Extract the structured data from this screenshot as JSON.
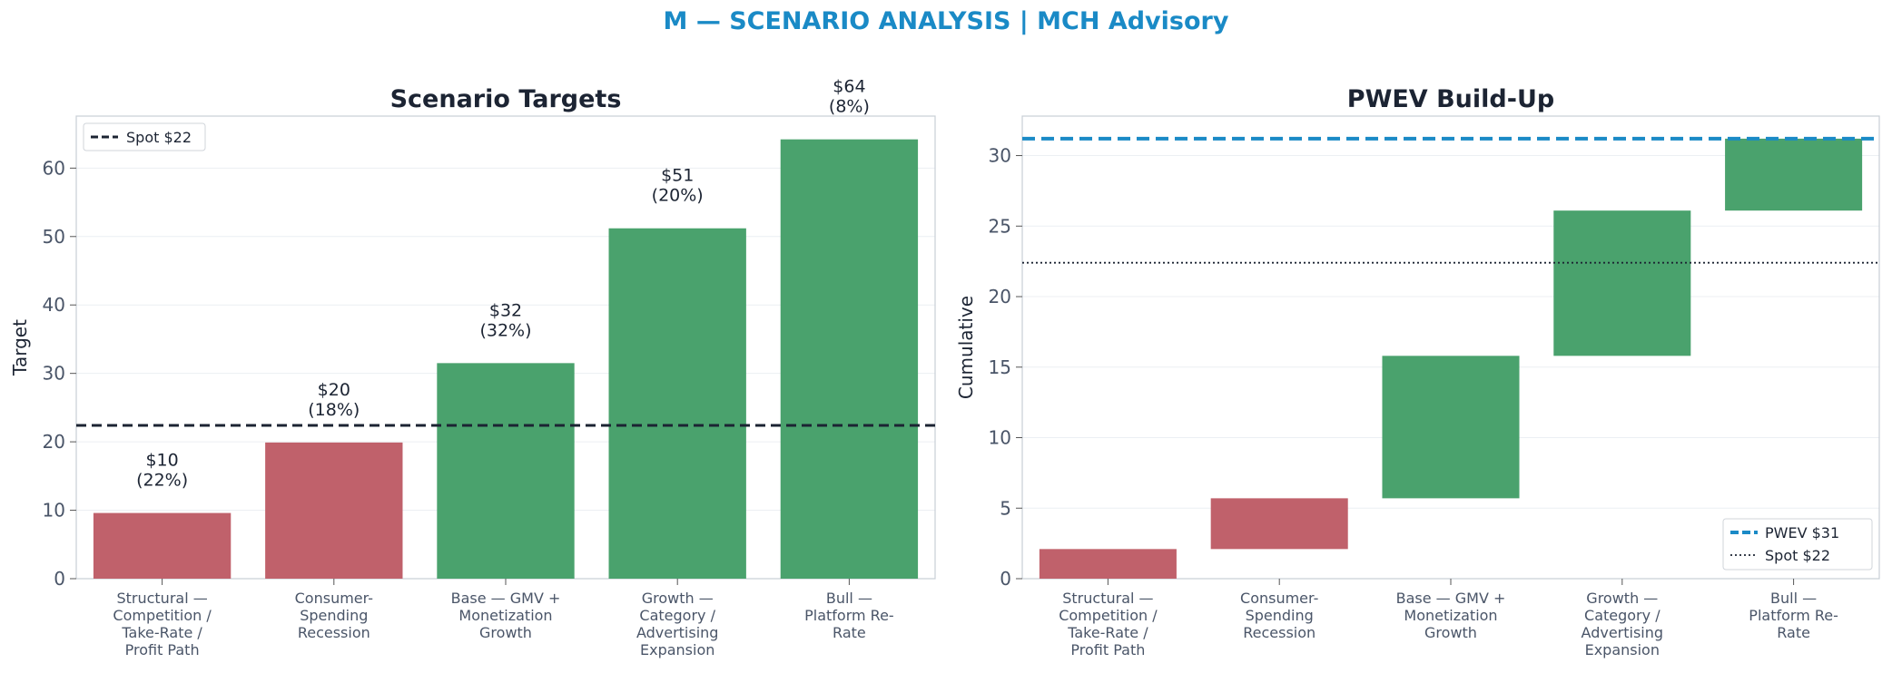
{
  "suptitle": "M — SCENARIO ANALYSIS | MCH Advisory",
  "colors": {
    "downside": "#c0616b",
    "upside": "#4aa26d",
    "spot_line": "#1c2433",
    "pwev_line": "#1a8ac6",
    "title": "#1c2433",
    "tick": "#4a5568",
    "axis_frame": "#c8ced6",
    "grid": "#eceff3"
  },
  "chart_data": [
    {
      "type": "bar",
      "title": "Scenario Targets",
      "xlabel": "",
      "ylabel": "Target",
      "ylim": [
        0,
        67.6
      ],
      "yticks": [
        0,
        10,
        20,
        30,
        40,
        50,
        60
      ],
      "grid": true,
      "categories": [
        [
          "Structural —",
          "Competition /",
          "Take-Rate /",
          "Profit Path"
        ],
        [
          "Consumer-",
          "Spending",
          "Recession"
        ],
        [
          "Base — GMV +",
          "Monetization",
          "Growth"
        ],
        [
          "Growth —",
          "Category /",
          "Advertising",
          "Expansion"
        ],
        [
          "Bull —",
          "Platform Re-",
          "Rate"
        ]
      ],
      "values": [
        9.6,
        19.9,
        31.5,
        51.2,
        64.2
      ],
      "bar_labels": [
        [
          "$10",
          "(22%)"
        ],
        [
          "$20",
          "(18%)"
        ],
        [
          "$32",
          "(32%)"
        ],
        [
          "$51",
          "(20%)"
        ],
        [
          "$64",
          "(8%)"
        ]
      ],
      "bar_colors": [
        "downside",
        "downside",
        "upside",
        "upside",
        "upside"
      ],
      "reference_line": {
        "label": "Spot $22",
        "value": 22.4,
        "style": "dashed"
      },
      "legend": {
        "position": "top-left",
        "entries": [
          "Spot $22"
        ]
      }
    },
    {
      "type": "waterfall",
      "title": "PWEV Build-Up",
      "xlabel": "",
      "ylabel": "Cumulative",
      "ylim": [
        0,
        32.8
      ],
      "yticks": [
        0,
        5,
        10,
        15,
        20,
        25,
        30
      ],
      "grid": true,
      "categories": [
        [
          "Structural —",
          "Competition /",
          "Take-Rate /",
          "Profit Path"
        ],
        [
          "Consumer-",
          "Spending",
          "Recession"
        ],
        [
          "Base — GMV +",
          "Monetization",
          "Growth"
        ],
        [
          "Growth —",
          "Category /",
          "Advertising",
          "Expansion"
        ],
        [
          "Bull —",
          "Platform Re-",
          "Rate"
        ]
      ],
      "contributions": [
        2.1,
        3.6,
        10.1,
        10.3,
        5.1
      ],
      "cumulative": [
        2.1,
        5.7,
        15.8,
        26.1,
        31.2
      ],
      "bar_colors": [
        "downside",
        "downside",
        "upside",
        "upside",
        "upside"
      ],
      "reference_lines": [
        {
          "label": "PWEV $31",
          "value": 31.2,
          "style": "dashed",
          "color": "pwev_line"
        },
        {
          "label": "Spot $22",
          "value": 22.4,
          "style": "dotted",
          "color": "spot_line"
        }
      ],
      "legend": {
        "position": "bottom-right",
        "entries": [
          "PWEV $31",
          "Spot $22"
        ]
      }
    }
  ]
}
